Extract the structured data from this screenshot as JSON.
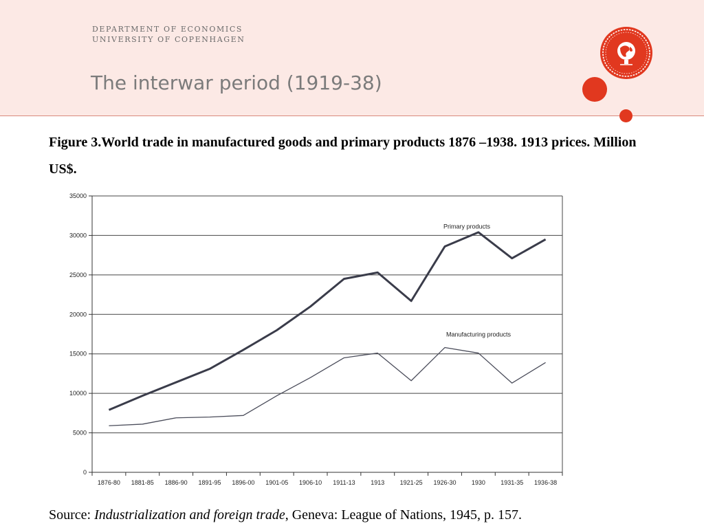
{
  "header": {
    "dept_line1": "DEPARTMENT OF ECONOMICS",
    "dept_line2": "UNIVERSITY OF COPENHAGEN",
    "title": "The interwar period (1919-38)",
    "accent_color": "#e1381f",
    "band_color": "#fce9e5",
    "logo_icon": "university-seal-icon"
  },
  "figure": {
    "caption": "Figure 3.World trade in manufactured goods and primary products 1876 –1938. 1913 prices. Million US$."
  },
  "source": {
    "prefix": "Source: ",
    "title": "Industrialization and foreign trade",
    "suffix": ", Geneva: League of Nations, 1945, p. 157."
  },
  "chart_data": {
    "type": "line",
    "title": "",
    "xlabel": "",
    "ylabel": "",
    "categories": [
      "1876-80",
      "1881-85",
      "1886-90",
      "1891-95",
      "1896-00",
      "1901-05",
      "1906-10",
      "1911-13",
      "1913",
      "1921-25",
      "1926-30",
      "1930",
      "1931-35",
      "1936-38"
    ],
    "ylim": [
      0,
      35000
    ],
    "yticks": [
      0,
      5000,
      10000,
      15000,
      20000,
      25000,
      30000,
      35000
    ],
    "grid": true,
    "series": [
      {
        "name": "Primary products",
        "values": [
          7900,
          9700,
          11400,
          13100,
          15500,
          18000,
          21000,
          24500,
          25300,
          21700,
          28600,
          30400,
          27100,
          29500
        ]
      },
      {
        "name": "Manufacturing products",
        "values": [
          5900,
          6100,
          6900,
          7000,
          7200,
          9700,
          12000,
          14500,
          15100,
          11600,
          15800,
          15100,
          11300,
          13900
        ]
      }
    ]
  }
}
